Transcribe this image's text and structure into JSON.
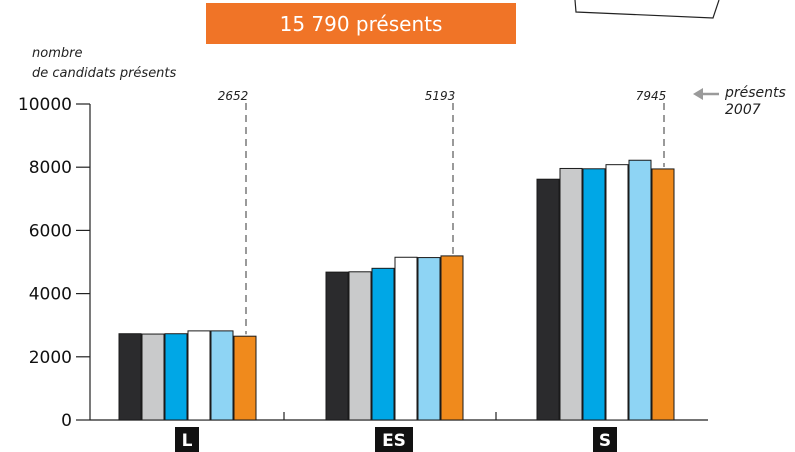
{
  "banner": {
    "text": "15 790 présents",
    "color": "#F07427"
  },
  "ylabel": [
    "nombre",
    "de candidats présents"
  ],
  "annotation": {
    "text": [
      "présents",
      "2007"
    ],
    "arrow": "left-arrow-icon"
  },
  "colors": {
    "series": [
      "#2B2B2D",
      "#C9CACB",
      "#00A7E6",
      "#FFFFFF",
      "#8ED4F4",
      "#F08A1C"
    ],
    "dashed": "#9A9A9A",
    "axis": "#222222",
    "category_bg": "#111111"
  },
  "chart_data": {
    "type": "bar",
    "categories": [
      "L",
      "ES",
      "S"
    ],
    "ylim": [
      0,
      10000
    ],
    "yticks": [
      0,
      2000,
      4000,
      6000,
      8000,
      10000
    ],
    "series": [
      {
        "values": [
          2730,
          4680,
          7620
        ]
      },
      {
        "values": [
          2720,
          4690,
          7960
        ]
      },
      {
        "values": [
          2730,
          4800,
          7950
        ]
      },
      {
        "values": [
          2820,
          5150,
          8080
        ]
      },
      {
        "values": [
          2820,
          5140,
          8220
        ]
      },
      {
        "values": [
          2652,
          5193,
          7945
        ]
      }
    ],
    "value_labels": [
      "2652",
      "5193",
      "7945"
    ],
    "grid": false
  }
}
